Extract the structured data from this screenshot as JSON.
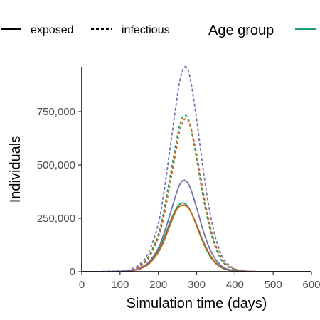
{
  "chart_data": {
    "type": "line",
    "xlabel": "Simulation time (days)",
    "ylabel": "Individuals",
    "xlim": [
      0,
      600
    ],
    "ylim": [
      0,
      960000
    ],
    "x_ticks": [
      0,
      100,
      200,
      300,
      400,
      500,
      600
    ],
    "x_tick_labels": [
      "0",
      "100",
      "200",
      "300",
      "400",
      "500",
      "600"
    ],
    "y_ticks": [
      0,
      250000,
      500000,
      750000
    ],
    "y_tick_labels": [
      "0",
      "250,000",
      "500,000",
      "750,000"
    ],
    "grid": false,
    "legend": {
      "linetype_entries": [
        {
          "label": "exposed",
          "dash": "solid"
        },
        {
          "label": "infectious",
          "dash": "dashed"
        }
      ],
      "color_title": "Age group",
      "color_swatch": "#1b9e77",
      "placement": "top"
    },
    "series": [
      {
        "group": "green",
        "compartment": "exposed",
        "color": "#1b9e77",
        "dash": "solid",
        "x": [
          0,
          50,
          100,
          125,
          150,
          175,
          200,
          215,
          230,
          245,
          255,
          265,
          275,
          285,
          300,
          315,
          330,
          345,
          360,
          375,
          400,
          425,
          450,
          500,
          550,
          600
        ],
        "y": [
          0,
          200,
          1500,
          4000,
          14000,
          40000,
          100000,
          160000,
          230000,
          290000,
          315000,
          322000,
          310000,
          280000,
          215000,
          145000,
          88000,
          48000,
          24000,
          11000,
          3000,
          800,
          200,
          0,
          0,
          0
        ]
      },
      {
        "group": "orange",
        "compartment": "exposed",
        "color": "#d95f02",
        "dash": "solid",
        "x": [
          0,
          50,
          100,
          125,
          150,
          175,
          200,
          215,
          230,
          245,
          255,
          265,
          275,
          285,
          300,
          315,
          330,
          345,
          360,
          375,
          400,
          425,
          450,
          500,
          550,
          600
        ],
        "y": [
          0,
          200,
          1300,
          3500,
          12000,
          35000,
          90000,
          145000,
          215000,
          280000,
          305000,
          312000,
          305000,
          280000,
          220000,
          152000,
          95000,
          53000,
          27000,
          12000,
          3300,
          900,
          200,
          0,
          0,
          0
        ]
      },
      {
        "group": "purple",
        "compartment": "exposed",
        "color": "#7570b3",
        "dash": "solid",
        "x": [
          0,
          50,
          100,
          125,
          150,
          175,
          200,
          215,
          230,
          245,
          255,
          265,
          275,
          285,
          300,
          315,
          330,
          345,
          360,
          375,
          400,
          425,
          450,
          500,
          550,
          600
        ],
        "y": [
          0,
          250,
          1700,
          4500,
          15000,
          45000,
          110000,
          180000,
          265000,
          355000,
          405000,
          428000,
          420000,
          385000,
          300000,
          205000,
          125000,
          70000,
          35000,
          16000,
          4500,
          1200,
          300,
          0,
          0,
          0
        ]
      },
      {
        "group": "green",
        "compartment": "infectious",
        "color": "#1b9e77",
        "dash": "dashed",
        "x": [
          0,
          50,
          100,
          125,
          150,
          175,
          200,
          215,
          230,
          245,
          255,
          265,
          275,
          285,
          300,
          315,
          330,
          345,
          360,
          375,
          400,
          425,
          450,
          500,
          550,
          600
        ],
        "y": [
          0,
          400,
          2800,
          7500,
          25000,
          72000,
          175000,
          290000,
          440000,
          590000,
          680000,
          728000,
          725000,
          670000,
          530000,
          370000,
          235000,
          135000,
          70000,
          33000,
          9000,
          2500,
          600,
          0,
          0,
          0
        ]
      },
      {
        "group": "orange",
        "compartment": "infectious",
        "color": "#d95f02",
        "dash": "dashed",
        "x": [
          0,
          50,
          100,
          125,
          150,
          175,
          200,
          215,
          230,
          245,
          255,
          265,
          275,
          285,
          300,
          315,
          330,
          345,
          360,
          375,
          400,
          425,
          450,
          500,
          550,
          600
        ],
        "y": [
          0,
          350,
          2500,
          7000,
          22000,
          65000,
          160000,
          265000,
          405000,
          555000,
          650000,
          705000,
          715000,
          675000,
          550000,
          395000,
          255000,
          150000,
          80000,
          38000,
          11000,
          3000,
          700,
          0,
          0,
          0
        ]
      },
      {
        "group": "purple",
        "compartment": "infectious",
        "color": "#7570b3",
        "dash": "dashed",
        "x": [
          0,
          50,
          100,
          125,
          150,
          175,
          200,
          215,
          230,
          245,
          255,
          265,
          275,
          285,
          300,
          315,
          330,
          345,
          360,
          375,
          400,
          425,
          450,
          500,
          550,
          600
        ],
        "y": [
          0,
          500,
          3500,
          9500,
          32000,
          92000,
          225000,
          375000,
          570000,
          765000,
          885000,
          950000,
          955000,
          890000,
          715000,
          505000,
          325000,
          190000,
          100000,
          48000,
          13000,
          3500,
          900,
          0,
          0,
          0
        ]
      }
    ]
  }
}
